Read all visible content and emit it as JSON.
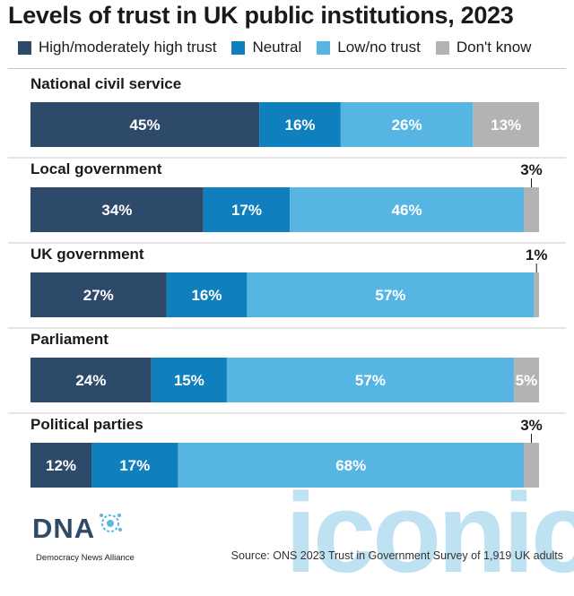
{
  "chart_data": {
    "type": "bar",
    "orientation": "horizontal",
    "stacked": true,
    "title": "Levels of trust in UK public institutions, 2023",
    "categories": [
      "National civil service",
      "Local government",
      "UK government",
      "Parliament",
      "Political parties"
    ],
    "series": [
      {
        "name": "High/moderately high trust",
        "color": "#2d4a6b",
        "values": [
          45,
          34,
          27,
          24,
          12
        ]
      },
      {
        "name": "Neutral",
        "color": "#0f7fbd",
        "values": [
          16,
          17,
          16,
          15,
          17
        ]
      },
      {
        "name": "Low/no trust",
        "color": "#56b5e2",
        "values": [
          26,
          46,
          57,
          57,
          68
        ]
      },
      {
        "name": "Don't know",
        "color": "#b3b3b3",
        "values": [
          13,
          3,
          1,
          5,
          3
        ]
      }
    ],
    "value_suffix": "%",
    "legend": "top",
    "grid": false
  },
  "watermark": "iconic",
  "logo": {
    "name": "DNA",
    "tagline": "Democracy News Alliance"
  },
  "source": "Source: ONS 2023 Trust in Government Survey of 1,919 UK adults"
}
